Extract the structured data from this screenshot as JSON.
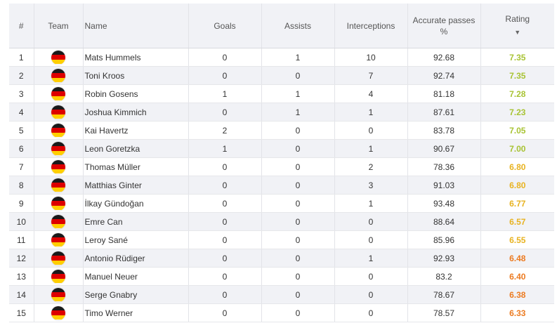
{
  "headers": {
    "num": "#",
    "team": "Team",
    "name": "Name",
    "goals": "Goals",
    "assists": "Assists",
    "interceptions": "Interceptions",
    "accurate_passes_line1": "Accurate passes",
    "accurate_passes_line2": "%",
    "rating": "Rating",
    "sort_icon": "▼"
  },
  "flag_colors": [
    "#1a1a1a",
    "#dd0000",
    "#ffce00"
  ],
  "rating_colors": {
    "high": "#a8c334",
    "mid": "#e8b321",
    "low": "#ec7b21"
  },
  "rows": [
    {
      "num": "1",
      "name": "Mats Hummels",
      "goals": "0",
      "assists": "1",
      "interceptions": "10",
      "passes": "92.68",
      "rating": "7.35",
      "tier": "high"
    },
    {
      "num": "2",
      "name": "Toni Kroos",
      "goals": "0",
      "assists": "0",
      "interceptions": "7",
      "passes": "92.74",
      "rating": "7.35",
      "tier": "high"
    },
    {
      "num": "3",
      "name": "Robin Gosens",
      "goals": "1",
      "assists": "1",
      "interceptions": "4",
      "passes": "81.18",
      "rating": "7.28",
      "tier": "high"
    },
    {
      "num": "4",
      "name": "Joshua Kimmich",
      "goals": "0",
      "assists": "1",
      "interceptions": "1",
      "passes": "87.61",
      "rating": "7.23",
      "tier": "high"
    },
    {
      "num": "5",
      "name": "Kai Havertz",
      "goals": "2",
      "assists": "0",
      "interceptions": "0",
      "passes": "83.78",
      "rating": "7.05",
      "tier": "high"
    },
    {
      "num": "6",
      "name": "Leon Goretzka",
      "goals": "1",
      "assists": "0",
      "interceptions": "1",
      "passes": "90.67",
      "rating": "7.00",
      "tier": "high"
    },
    {
      "num": "7",
      "name": "Thomas Müller",
      "goals": "0",
      "assists": "0",
      "interceptions": "2",
      "passes": "78.36",
      "rating": "6.80",
      "tier": "mid"
    },
    {
      "num": "8",
      "name": "Matthias Ginter",
      "goals": "0",
      "assists": "0",
      "interceptions": "3",
      "passes": "91.03",
      "rating": "6.80",
      "tier": "mid"
    },
    {
      "num": "9",
      "name": "İlkay Gündoğan",
      "goals": "0",
      "assists": "0",
      "interceptions": "1",
      "passes": "93.48",
      "rating": "6.77",
      "tier": "mid"
    },
    {
      "num": "10",
      "name": "Emre Can",
      "goals": "0",
      "assists": "0",
      "interceptions": "0",
      "passes": "88.64",
      "rating": "6.57",
      "tier": "mid"
    },
    {
      "num": "11",
      "name": "Leroy Sané",
      "goals": "0",
      "assists": "0",
      "interceptions": "0",
      "passes": "85.96",
      "rating": "6.55",
      "tier": "mid"
    },
    {
      "num": "12",
      "name": "Antonio Rüdiger",
      "goals": "0",
      "assists": "0",
      "interceptions": "1",
      "passes": "92.93",
      "rating": "6.48",
      "tier": "low"
    },
    {
      "num": "13",
      "name": "Manuel Neuer",
      "goals": "0",
      "assists": "0",
      "interceptions": "0",
      "passes": "83.2",
      "rating": "6.40",
      "tier": "low"
    },
    {
      "num": "14",
      "name": "Serge Gnabry",
      "goals": "0",
      "assists": "0",
      "interceptions": "0",
      "passes": "78.67",
      "rating": "6.38",
      "tier": "low"
    },
    {
      "num": "15",
      "name": "Timo Werner",
      "goals": "0",
      "assists": "0",
      "interceptions": "0",
      "passes": "78.57",
      "rating": "6.33",
      "tier": "low"
    }
  ]
}
